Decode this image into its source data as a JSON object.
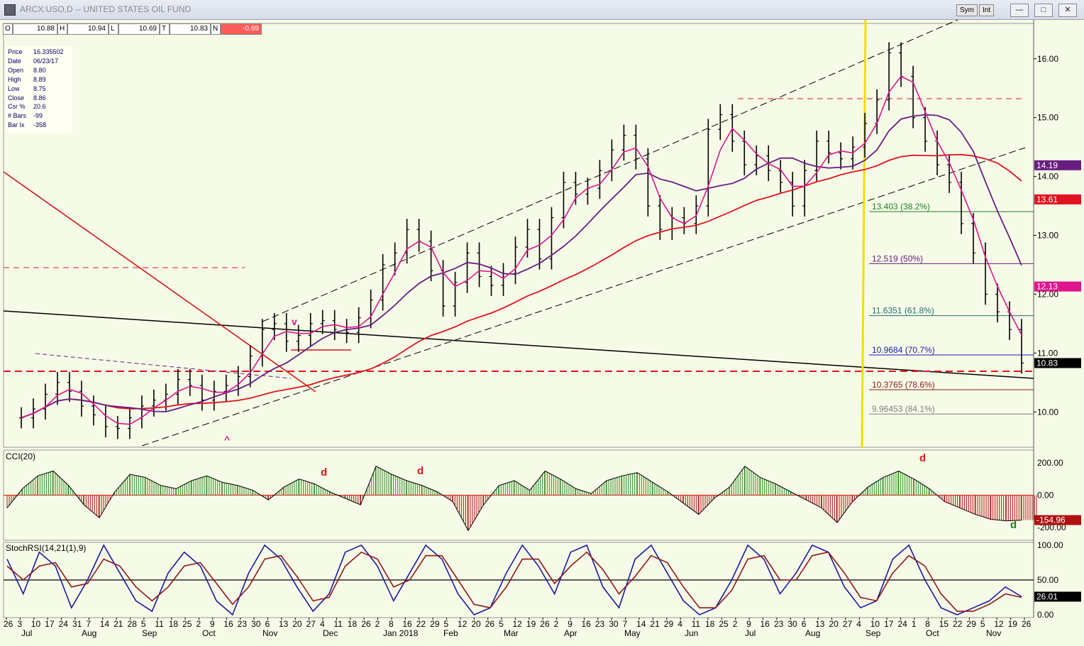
{
  "window": {
    "title": "ARCX:USO,D -- UNITED STATES OIL FUND",
    "sym_button": "Sym",
    "int_button": "Int",
    "minimize": "—",
    "restore": "□",
    "close": "✕"
  },
  "quote": {
    "open_label": "O",
    "open": "10.88",
    "high_label": "H",
    "high": "10.94",
    "low_label": "L",
    "low": "10.69",
    "close_label": "T",
    "close": "10.83",
    "change_label": "N",
    "change": "-0.69"
  },
  "info": [
    {
      "label": "Price",
      "value": "16.335502"
    },
    {
      "label": "Date",
      "value": "06/23/17"
    },
    {
      "label": "Open",
      "value": "8.80"
    },
    {
      "label": "High",
      "value": "8.89"
    },
    {
      "label": "Low",
      "value": "8.75"
    },
    {
      "label": "Close",
      "value": "8.86"
    },
    {
      "label": "Csr %",
      "value": "20.6"
    },
    {
      "label": "# Bars",
      "value": "-99"
    },
    {
      "label": "Bar Ix",
      "value": "-358"
    }
  ],
  "colors": {
    "background": "#f6fbe8",
    "ma_fast": "#e0148c",
    "ma_mid": "#6a1d80",
    "ma_slow": "#e0141e",
    "fib_green": "#208020",
    "fib_purple": "#6a1d80",
    "fib_teal": "#207070",
    "fib_blue": "#1a1ab0",
    "fib_maroon": "#901818",
    "fib_gray": "#808080",
    "cci_pos": "#2c8a1e",
    "cci_neg": "#b01010",
    "stoch_k": "#1a1aa0",
    "stoch_d": "#901818",
    "cycle_marker": "#f0e000"
  },
  "chart_data": [
    {
      "type": "candlestick",
      "title": "ARCX:USO,D -- UNITED STATES OIL FUND",
      "ylim": [
        9.4,
        16.6
      ],
      "price_ticks": [
        "10.00",
        "11.00",
        "12.00",
        "13.00",
        "14.00",
        "15.00",
        "16.00"
      ],
      "last_price": "10.83",
      "ma_labels": [
        "14.19",
        "13.61",
        "12.13"
      ],
      "fib_levels": [
        {
          "value": 13.403,
          "label": "13.403 (38.2%)"
        },
        {
          "value": 12.519,
          "label": "12.519 (50%)"
        },
        {
          "value": 11.6351,
          "label": "11.6351 (61.8%)"
        },
        {
          "value": 10.9684,
          "label": "10.9684 (70.7%)"
        },
        {
          "value": 10.3765,
          "label": "10.3765 (78.6%)"
        },
        {
          "value": 9.96453,
          "label": "9.96453 (84.1%)"
        }
      ],
      "close_series": [
        9.9,
        10.05,
        10.3,
        10.5,
        10.35,
        10.1,
        9.95,
        9.75,
        9.72,
        9.9,
        10.1,
        10.2,
        10.3,
        10.55,
        10.45,
        10.2,
        10.35,
        10.45,
        10.6,
        10.95,
        11.4,
        11.5,
        11.2,
        11.3,
        11.5,
        11.55,
        11.4,
        11.35,
        11.6,
        11.9,
        12.5,
        12.7,
        13.1,
        12.9,
        12.4,
        11.8,
        12.2,
        12.7,
        12.3,
        12.15,
        12.35,
        12.8,
        13.1,
        12.6,
        13.3,
        13.9,
        13.7,
        13.8,
        14.1,
        14.45,
        14.7,
        14.3,
        13.5,
        13.1,
        13.3,
        13.2,
        13.5,
        14.8,
        15.05,
        14.6,
        14.2,
        14.35,
        14.1,
        13.9,
        13.5,
        14.1,
        14.6,
        14.4,
        14.3,
        14.5,
        14.9,
        15.3,
        16.1,
        15.7,
        15.0,
        14.6,
        14.2,
        13.9,
        13.2,
        12.7,
        12.0,
        11.7,
        11.4,
        10.83
      ],
      "macd_like": {
        "ma_fast_last": 12.13,
        "ma_mid_last": 14.19,
        "ma_slow_last": 13.61
      }
    },
    {
      "type": "bar",
      "title": "CCI(20)",
      "ylim": [
        -280,
        280
      ],
      "ticks": [
        "200.00",
        "0.00",
        "-200.00"
      ],
      "last_value": "-154.96",
      "values": [
        -80,
        40,
        120,
        150,
        60,
        -60,
        -140,
        20,
        130,
        110,
        60,
        40,
        90,
        120,
        80,
        60,
        30,
        -30,
        50,
        100,
        70,
        20,
        -20,
        -60,
        180,
        130,
        90,
        60,
        20,
        -40,
        -220,
        -60,
        60,
        90,
        30,
        150,
        100,
        40,
        10,
        90,
        120,
        140,
        80,
        20,
        -50,
        -120,
        -20,
        50,
        180,
        110,
        70,
        20,
        -30,
        -80,
        -170,
        -40,
        50,
        110,
        150,
        100,
        40,
        -40,
        -80,
        -120,
        -150,
        -160,
        -155
      ],
      "annotations": [
        "d",
        "d",
        "d",
        "d"
      ]
    },
    {
      "type": "line",
      "title": "StochRSI(14,21(1),9)",
      "ylim": [
        0,
        100
      ],
      "ticks": [
        "100.00",
        "50.00",
        "0.00"
      ],
      "last_value": "26.01",
      "series": [
        {
          "values": [
            80,
            30,
            90,
            70,
            10,
            50,
            100,
            60,
            20,
            5,
            60,
            90,
            70,
            20,
            0,
            60,
            100,
            80,
            40,
            5,
            30,
            90,
            100,
            70,
            20,
            60,
            100,
            80,
            30,
            0,
            10,
            60,
            100,
            70,
            30,
            90,
            100,
            40,
            10,
            80,
            100,
            60,
            20,
            0,
            10,
            50,
            100,
            80,
            30,
            60,
            100,
            90,
            40,
            10,
            20,
            80,
            100,
            50,
            10,
            0,
            10,
            20,
            40,
            26
          ]
        },
        {
          "values": [
            70,
            50,
            70,
            75,
            40,
            45,
            80,
            70,
            40,
            20,
            40,
            70,
            75,
            45,
            15,
            40,
            80,
            85,
            55,
            20,
            25,
            70,
            90,
            80,
            40,
            50,
            85,
            85,
            50,
            15,
            10,
            40,
            80,
            80,
            45,
            70,
            90,
            65,
            30,
            55,
            85,
            75,
            40,
            10,
            10,
            35,
            80,
            85,
            50,
            50,
            85,
            90,
            60,
            25,
            20,
            60,
            85,
            70,
            30,
            5,
            5,
            15,
            30,
            25
          ]
        }
      ]
    }
  ],
  "x_axis": {
    "day_labels": [
      "26",
      "3",
      "10",
      "17",
      "24",
      "31",
      "7",
      "14",
      "21",
      "28",
      "5",
      "11",
      "18",
      "25",
      "2",
      "9",
      "16",
      "23",
      "30",
      "6",
      "13",
      "20",
      "27",
      "4",
      "11",
      "18",
      "26",
      "2",
      "8",
      "16",
      "22",
      "29",
      "5",
      "12",
      "20",
      "26",
      "5",
      "12",
      "19",
      "26",
      "2",
      "9",
      "16",
      "23",
      "30",
      "7",
      "14",
      "21",
      "29",
      "4",
      "11",
      "18",
      "25",
      "2",
      "9",
      "16",
      "23",
      "30",
      "6",
      "13",
      "20",
      "27",
      "4",
      "10",
      "17",
      "24",
      "1",
      "8",
      "15",
      "22",
      "29",
      "5",
      "12",
      "19",
      "26"
    ],
    "month_labels": [
      "Jul",
      "Aug",
      "Sep",
      "Oct",
      "Nov",
      "Dec",
      "Jan 2018",
      "Feb",
      "Mar",
      "Apr",
      "May",
      "Jun",
      "Jul",
      "Aug",
      "Sep",
      "Oct",
      "Nov"
    ]
  },
  "markers": {
    "v_label": "v",
    "caret_label": "^",
    "d_label": "d"
  }
}
